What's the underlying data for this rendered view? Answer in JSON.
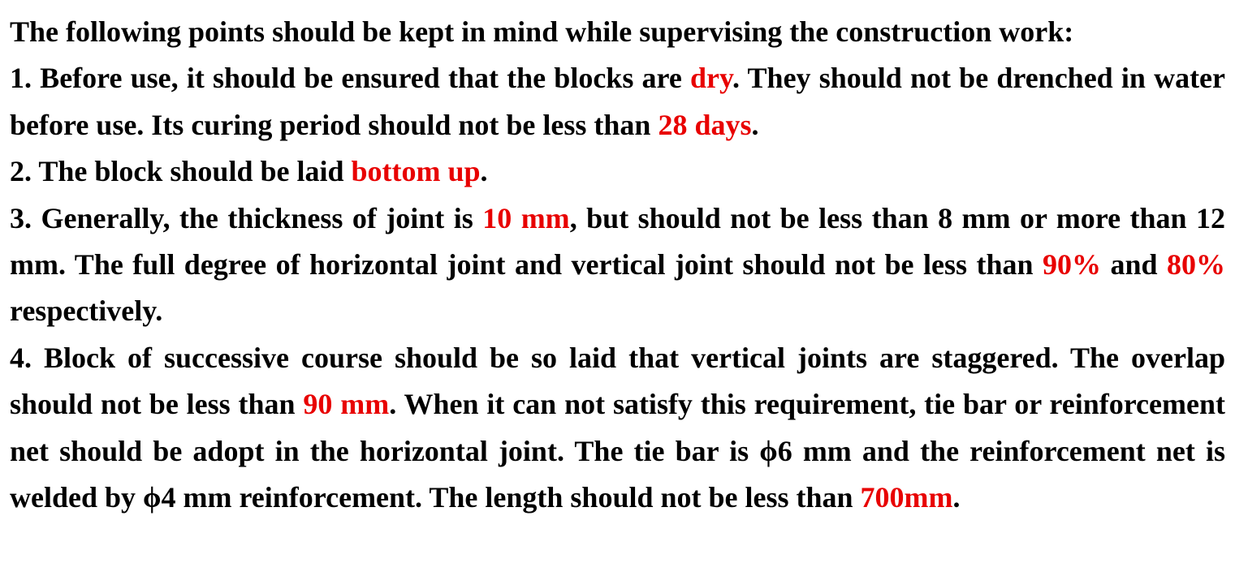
{
  "intro": "The following points should be kept in mind while supervising the construction work:",
  "items": [
    [
      "1. Before use, it should be ensured that the blocks are ",
      {
        "text": "dry",
        "color": "#e80000"
      },
      ". They should not be drenched in water before use. Its curing period should not be less than ",
      {
        "text": "28 days",
        "color": "#e80000"
      },
      "."
    ],
    [
      "2. The block should be laid ",
      {
        "text": "bottom up",
        "color": "#e80000"
      },
      "."
    ],
    [
      "3. Generally, the thickness of joint is ",
      {
        "text": "10 mm",
        "color": "#e80000"
      },
      ", but should not be less than 8 mm or more than 12 mm. The full degree of horizontal joint and vertical joint should not be less than ",
      {
        "text": "90%",
        "color": "#e80000"
      },
      " and ",
      {
        "text": "80%",
        "color": "#e80000"
      },
      " respectively."
    ],
    [
      "4. Block of successive course should be so laid that vertical joints are staggered. The overlap should not be less than ",
      {
        "text": "90 mm",
        "color": "#e80000"
      },
      ". When it can not satisfy this requirement, tie bar or reinforcement net should be adopt in the horizontal joint. The tie bar is ϕ6 mm and the reinforcement net is welded by ϕ4 mm reinforcement. The length should not be less than ",
      {
        "text": "700mm",
        "color": "#e80000"
      },
      "."
    ]
  ]
}
